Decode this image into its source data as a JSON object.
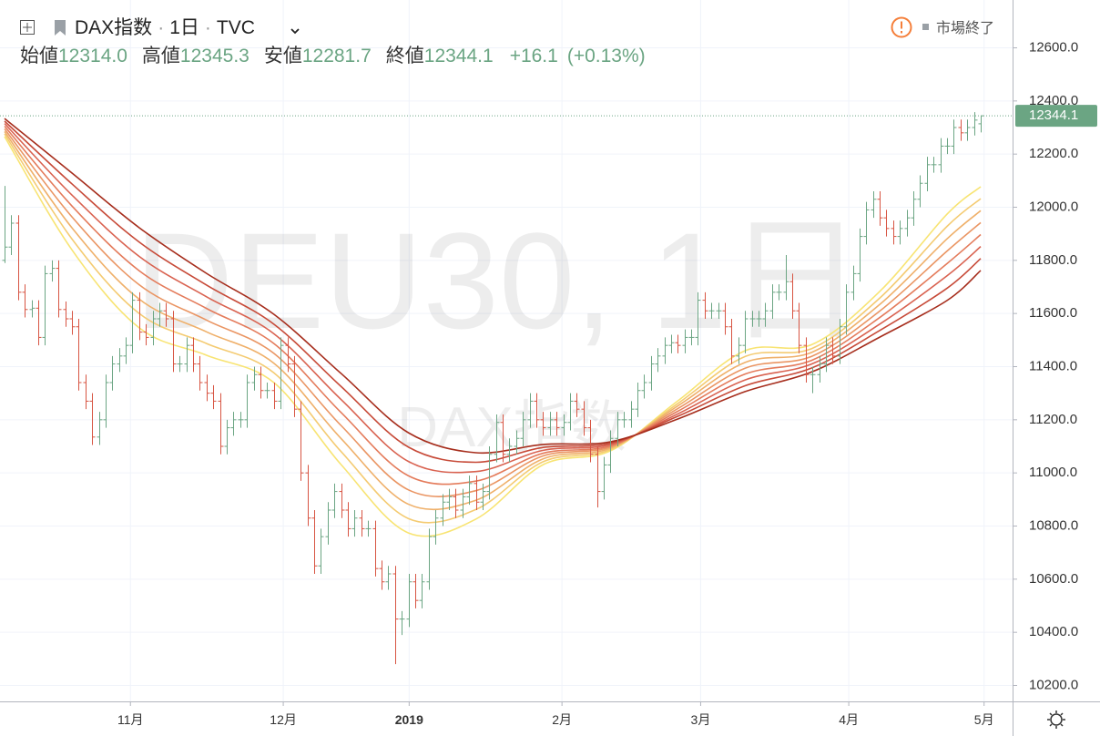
{
  "header": {
    "symbol": "DAX指数",
    "interval": "1日",
    "source": "TVC",
    "status": "市場終了",
    "open_label": "始値",
    "open": "12314.0",
    "high_label": "高値",
    "high": "12345.3",
    "low_label": "安値",
    "low": "12281.7",
    "close_label": "終値",
    "close": "12344.1",
    "change": "+16.1",
    "change_pct": "(+0.13%)"
  },
  "chart_data": {
    "type": "ohlc",
    "watermark": "DEU30, 1日",
    "watermark_sub": "DAX指数",
    "up_color": "#6ba583",
    "down_color": "#d75442",
    "grid": true,
    "open": [
      11800,
      11850,
      11940,
      11680,
      11615,
      11620,
      11510,
      11750,
      11770,
      11615,
      11580,
      11550,
      11340,
      11270,
      11135,
      11200,
      11340,
      11410,
      11440,
      11480,
      11650,
      11530,
      11510,
      11580,
      11610,
      11580,
      11410,
      11410,
      11480,
      11410,
      11340,
      11300,
      11270,
      11100,
      11170,
      11200,
      11200,
      11340,
      11370,
      11310,
      11310,
      11270,
      11480,
      11410,
      11240,
      11000,
      10830,
      10650,
      10760,
      10860,
      10930,
      10860,
      10790,
      10830,
      10790,
      10790,
      10640,
      10590,
      10620,
      10450,
      10450,
      10590,
      10520,
      10590,
      10760,
      10830,
      10890,
      10910,
      10860,
      10910,
      10960,
      10890,
      10930,
      11070,
      11190,
      11070,
      11100,
      11130,
      11200,
      11270,
      11200,
      11170,
      11200,
      11170,
      11190,
      11270,
      11240,
      11170,
      11070,
      10930,
      11030,
      11130,
      11200,
      11200,
      11240,
      11310,
      11340,
      11410,
      11440,
      11480,
      11490,
      11480,
      11510,
      11510,
      11650,
      11610,
      11610,
      11610,
      11550,
      11440,
      11480,
      11580,
      11580,
      11580,
      11610,
      11680,
      11680,
      11720,
      11610,
      11480,
      11370,
      11370,
      11410,
      11480,
      11440,
      11550,
      11680,
      11750,
      11890,
      11990,
      12030,
      11960,
      11920,
      11890,
      11920,
      11960,
      12030,
      12090,
      12160,
      12160,
      12230,
      12230,
      12300,
      12280,
      12300,
      12314
    ],
    "high": [
      12080,
      11970,
      11970,
      11710,
      11650,
      11650,
      11780,
      11800,
      11800,
      11645,
      11610,
      11580,
      11370,
      11300,
      11230,
      11370,
      11440,
      11470,
      11510,
      11680,
      11680,
      11560,
      11610,
      11640,
      11640,
      11610,
      11440,
      11510,
      11510,
      11440,
      11370,
      11330,
      11300,
      11200,
      11230,
      11230,
      11370,
      11400,
      11400,
      11340,
      11340,
      11510,
      11510,
      11440,
      11270,
      11030,
      10860,
      10790,
      10890,
      10960,
      10960,
      10890,
      10860,
      10860,
      10820,
      10820,
      10670,
      10650,
      10650,
      10480,
      10620,
      10620,
      10620,
      10790,
      10860,
      10920,
      10940,
      10940,
      10940,
      10990,
      10990,
      10960,
      11100,
      11220,
      11220,
      11130,
      11160,
      11230,
      11300,
      11300,
      11230,
      11230,
      11230,
      11220,
      11300,
      11300,
      11270,
      11200,
      11100,
      11060,
      11160,
      11230,
      11230,
      11270,
      11340,
      11370,
      11440,
      11470,
      11510,
      11520,
      11520,
      11540,
      11540,
      11680,
      11680,
      11640,
      11640,
      11640,
      11580,
      11510,
      11610,
      11610,
      11610,
      11640,
      11710,
      11710,
      11820,
      11750,
      11640,
      11510,
      11400,
      11440,
      11510,
      11510,
      11580,
      11710,
      11780,
      11920,
      12020,
      12060,
      12060,
      11990,
      11950,
      11950,
      11990,
      12060,
      12120,
      12190,
      12190,
      12260,
      12260,
      12330,
      12330,
      12330,
      12358,
      12345.3
    ],
    "low": [
      11790,
      11820,
      11650,
      11585,
      11585,
      11480,
      11480,
      11720,
      11585,
      11550,
      11520,
      11310,
      11240,
      11105,
      11105,
      11170,
      11310,
      11380,
      11410,
      11450,
      11500,
      11480,
      11480,
      11550,
      11550,
      11380,
      11380,
      11380,
      11380,
      11310,
      11270,
      11240,
      11070,
      11070,
      11140,
      11170,
      11170,
      11310,
      11280,
      11280,
      11240,
      11240,
      11380,
      11210,
      10970,
      10800,
      10620,
      10620,
      10730,
      10830,
      10830,
      10760,
      10760,
      10760,
      10760,
      10610,
      10560,
      10560,
      10280,
      10390,
      10420,
      10490,
      10490,
      10560,
      10730,
      10800,
      10860,
      10830,
      10830,
      10880,
      10860,
      10860,
      10900,
      11040,
      11040,
      11040,
      11070,
      11100,
      11170,
      11170,
      11140,
      11140,
      11140,
      11140,
      11160,
      11210,
      11140,
      11040,
      10870,
      10900,
      11000,
      11100,
      11170,
      11170,
      11210,
      11280,
      11310,
      11380,
      11410,
      11450,
      11450,
      11450,
      11480,
      11480,
      11580,
      11580,
      11580,
      11520,
      11410,
      11410,
      11450,
      11550,
      11550,
      11550,
      11580,
      11650,
      11650,
      11580,
      11450,
      11340,
      11300,
      11340,
      11380,
      11410,
      11410,
      11520,
      11650,
      11720,
      11860,
      11960,
      11930,
      11890,
      11860,
      11860,
      11890,
      11930,
      12000,
      12060,
      12130,
      12130,
      12200,
      12200,
      12250,
      12250,
      12270,
      12281.7
    ],
    "close": [
      11850,
      11940,
      11680,
      11615,
      11620,
      11510,
      11750,
      11770,
      11615,
      11580,
      11550,
      11340,
      11270,
      11135,
      11200,
      11340,
      11410,
      11440,
      11480,
      11650,
      11530,
      11510,
      11580,
      11610,
      11580,
      11410,
      11410,
      11480,
      11410,
      11340,
      11300,
      11270,
      11100,
      11170,
      11200,
      11200,
      11340,
      11370,
      11310,
      11310,
      11270,
      11480,
      11410,
      11240,
      11000,
      10830,
      10650,
      10760,
      10860,
      10930,
      10860,
      10790,
      10830,
      10790,
      10790,
      10640,
      10590,
      10620,
      10450,
      10450,
      10590,
      10520,
      10590,
      10760,
      10830,
      10890,
      10910,
      10860,
      10910,
      10960,
      10890,
      10930,
      11070,
      11190,
      11070,
      11100,
      11130,
      11200,
      11270,
      11200,
      11170,
      11200,
      11170,
      11190,
      11270,
      11240,
      11170,
      11070,
      10930,
      11030,
      11130,
      11200,
      11200,
      11240,
      11310,
      11340,
      11410,
      11440,
      11480,
      11490,
      11480,
      11510,
      11510,
      11650,
      11610,
      11610,
      11610,
      11550,
      11440,
      11480,
      11580,
      11580,
      11580,
      11610,
      11680,
      11680,
      11720,
      11610,
      11480,
      11370,
      11370,
      11410,
      11480,
      11440,
      11550,
      11680,
      11750,
      11890,
      11990,
      12030,
      11960,
      11920,
      11890,
      11920,
      11960,
      12030,
      12090,
      12160,
      12160,
      12230,
      12230,
      12300,
      12280,
      12300,
      12328,
      12344.1
    ],
    "series": [
      {
        "color": "#f8e473",
        "x": [
          0,
          10,
          20,
          30,
          40,
          50,
          60,
          70,
          80,
          90,
          100,
          110,
          120,
          130,
          140,
          145
        ],
        "values": [
          12266,
          11840,
          11546,
          11443,
          11340,
          11031,
          10774,
          10826,
          11031,
          11083,
          11271,
          11460,
          11484,
          11683,
          11974,
          12077
        ]
      },
      {
        "color": "#f4cb72",
        "x": [
          0,
          10,
          20,
          30,
          40,
          50,
          60,
          70,
          80,
          90,
          100,
          110,
          120,
          130,
          140,
          145
        ],
        "values": [
          12276,
          11881,
          11600,
          11487,
          11377,
          11080,
          10828,
          10862,
          11042,
          11088,
          11261,
          11438,
          11469,
          11658,
          11928,
          12032
        ]
      },
      {
        "color": "#efb06a",
        "x": [
          0,
          10,
          20,
          30,
          40,
          50,
          60,
          70,
          80,
          90,
          100,
          110,
          120,
          130,
          140,
          145
        ],
        "values": [
          12285,
          11923,
          11654,
          11531,
          11413,
          11129,
          10882,
          10897,
          11053,
          11093,
          11252,
          11416,
          11455,
          11634,
          11881,
          11987
        ]
      },
      {
        "color": "#ea9563",
        "x": [
          0,
          10,
          20,
          30,
          40,
          50,
          60,
          70,
          80,
          90,
          100,
          110,
          120,
          130,
          140,
          145
        ],
        "values": [
          12295,
          11964,
          11708,
          11575,
          11450,
          11178,
          10936,
          10933,
          11064,
          11098,
          11242,
          11394,
          11440,
          11609,
          11835,
          11942
        ]
      },
      {
        "color": "#e47b5b",
        "x": [
          0,
          10,
          20,
          30,
          40,
          50,
          60,
          70,
          80,
          90,
          100,
          110,
          120,
          130,
          140,
          145
        ],
        "values": [
          12305,
          12005,
          11761,
          11619,
          11487,
          11227,
          10989,
          10969,
          11074,
          11102,
          11232,
          11372,
          11425,
          11585,
          11788,
          11897
        ]
      },
      {
        "color": "#d96250",
        "x": [
          0,
          10,
          20,
          30,
          40,
          50,
          60,
          70,
          80,
          90,
          100,
          110,
          120,
          130,
          140,
          145
        ],
        "values": [
          12315,
          12046,
          11815,
          11663,
          11524,
          11276,
          11043,
          11005,
          11085,
          11107,
          11222,
          11350,
          11411,
          11560,
          11742,
          11852
        ]
      },
      {
        "color": "#c74a38",
        "x": [
          0,
          10,
          20,
          30,
          40,
          50,
          60,
          70,
          80,
          90,
          100,
          110,
          120,
          130,
          140,
          145
        ],
        "values": [
          12324,
          12088,
          11869,
          11707,
          11560,
          11325,
          11097,
          11040,
          11096,
          11112,
          11213,
          11328,
          11396,
          11536,
          11695,
          11807
        ]
      },
      {
        "color": "#a62d1c",
        "x": [
          0,
          10,
          20,
          30,
          40,
          50,
          60,
          70,
          80,
          90,
          100,
          110,
          120,
          130,
          140,
          145
        ],
        "values": [
          12334,
          12129,
          11923,
          11751,
          11597,
          11374,
          11151,
          11076,
          11107,
          11117,
          11203,
          11306,
          11381,
          11511,
          11649,
          11762
        ]
      }
    ],
    "ylim": [
      10140,
      12780
    ],
    "yticks": [
      {
        "value": 10200,
        "label": "10200.0"
      },
      {
        "value": 10400,
        "label": "10400.0"
      },
      {
        "value": 10600,
        "label": "10600.0"
      },
      {
        "value": 10800,
        "label": "10800.0"
      },
      {
        "value": 11000,
        "label": "11000.0"
      },
      {
        "value": 11200,
        "label": "11200.0"
      },
      {
        "value": 11400,
        "label": "11400.0"
      },
      {
        "value": 11600,
        "label": "11600.0"
      },
      {
        "value": 11800,
        "label": "11800.0"
      },
      {
        "value": 12000,
        "label": "12000.0"
      },
      {
        "value": 12200,
        "label": "12200.0"
      },
      {
        "value": 12400,
        "label": "12400.0"
      },
      {
        "value": 12600,
        "label": "12600.0"
      }
    ],
    "xticks": [
      {
        "value": 18.7,
        "label": "11月"
      },
      {
        "value": 41.4,
        "label": "12月"
      },
      {
        "value": 60.1,
        "label": "2019"
      },
      {
        "value": 82.8,
        "label": "2月"
      },
      {
        "value": 103.4,
        "label": "3月"
      },
      {
        "value": 125.4,
        "label": "4月"
      },
      {
        "value": 145.5,
        "label": "5月"
      }
    ]
  }
}
